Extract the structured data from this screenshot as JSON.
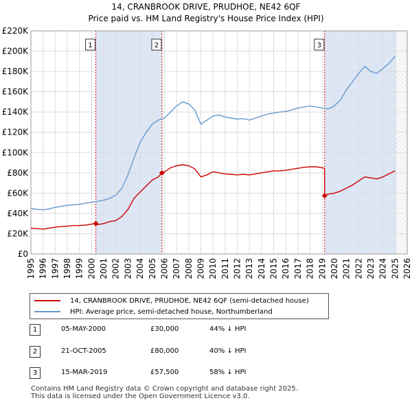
{
  "header": {
    "title": "14, CRANBROOK DRIVE, PRUDHOE, NE42 6QF",
    "subtitle": "Price paid vs. HM Land Registry's House Price Index (HPI)"
  },
  "legend": {
    "property_label": "14, CRANBROOK DRIVE, PRUDHOE, NE42 6QF (semi-detached house)",
    "hpi_label": "HPI: Average price, semi-detached house, Northumberland"
  },
  "sales": [
    {
      "num": "1",
      "date": "05-MAY-2000",
      "price": "£30,000",
      "hpi": "44% ↓ HPI"
    },
    {
      "num": "2",
      "date": "21-OCT-2005",
      "price": "£80,000",
      "hpi": "40% ↓ HPI"
    },
    {
      "num": "3",
      "date": "15-MAR-2019",
      "price": "£57,500",
      "hpi": "58% ↓ HPI"
    }
  ],
  "footer": {
    "line1": "Contains HM Land Registry data © Crown copyright and database right 2025.",
    "line2": "This data is licensed under the Open Government Licence v3.0."
  },
  "colors": {
    "property": "#cc0000",
    "hpi": "#6699cc",
    "shade": "#dde6f5",
    "grid": "#dddddd"
  },
  "chart_data": {
    "type": "line",
    "title": "14, CRANBROOK DRIVE, PRUDHOE, NE42 6QF",
    "subtitle": "Price paid vs. HM Land Registry's House Price Index (HPI)",
    "xlabel": "",
    "ylabel": "",
    "xlim": [
      1995,
      2026
    ],
    "ylim": [
      0,
      220000
    ],
    "y_ticks": [
      0,
      20000,
      40000,
      60000,
      80000,
      100000,
      120000,
      140000,
      160000,
      180000,
      200000,
      220000
    ],
    "y_tick_labels": [
      "£0",
      "£20K",
      "£40K",
      "£60K",
      "£80K",
      "£100K",
      "£120K",
      "£140K",
      "£160K",
      "£180K",
      "£200K",
      "£220K"
    ],
    "x_ticks": [
      1995,
      1996,
      1997,
      1998,
      1999,
      2000,
      2001,
      2002,
      2003,
      2004,
      2005,
      2006,
      2007,
      2008,
      2009,
      2010,
      2011,
      2012,
      2013,
      2014,
      2015,
      2016,
      2017,
      2018,
      2019,
      2020,
      2021,
      2022,
      2023,
      2024,
      2025,
      2026
    ],
    "x_tick_labels": [
      "1995",
      "1996",
      "1997",
      "1998",
      "1999",
      "2000",
      "2001",
      "2002",
      "2003",
      "2004",
      "2005",
      "2006",
      "2007",
      "2008",
      "2009",
      "2010",
      "2011",
      "2012",
      "2013",
      "2014",
      "2015",
      "2016",
      "2017",
      "2018",
      "2019",
      "2020",
      "2021",
      "2022",
      "2023",
      "2024",
      "2025",
      "2026"
    ],
    "grid": true,
    "shaded_ranges": [
      [
        2000.35,
        2005.8
      ],
      [
        2019.2,
        2025.1
      ]
    ],
    "hatch_from": 2025.1,
    "series": [
      {
        "name": "HPI: Average price, semi-detached house, Northumberland",
        "x": [
          1995.0,
          1995.5,
          1996.0,
          1996.5,
          1997.0,
          1997.5,
          1998.0,
          1998.5,
          1999.0,
          1999.5,
          2000.0,
          2000.5,
          2001.0,
          2001.5,
          2002.0,
          2002.5,
          2003.0,
          2003.5,
          2004.0,
          2004.5,
          2005.0,
          2005.5,
          2006.0,
          2006.5,
          2007.0,
          2007.5,
          2008.0,
          2008.5,
          2009.0,
          2009.5,
          2010.0,
          2010.5,
          2011.0,
          2011.5,
          2012.0,
          2012.5,
          2013.0,
          2013.5,
          2014.0,
          2014.5,
          2015.0,
          2015.5,
          2016.0,
          2016.5,
          2017.0,
          2017.5,
          2018.0,
          2018.5,
          2019.0,
          2019.5,
          2020.0,
          2020.5,
          2021.0,
          2021.5,
          2022.0,
          2022.5,
          2023.0,
          2023.5,
          2024.0,
          2024.5,
          2025.0
        ],
        "values": [
          45000,
          44000,
          43500,
          44500,
          46000,
          47000,
          48000,
          48500,
          49000,
          50000,
          51000,
          52000,
          53000,
          55000,
          58000,
          65000,
          78000,
          95000,
          110000,
          120000,
          128000,
          132000,
          134000,
          140000,
          146000,
          150000,
          148000,
          142000,
          128000,
          132000,
          136000,
          137000,
          135000,
          134000,
          133000,
          133500,
          132000,
          134000,
          136000,
          138000,
          139000,
          140000,
          140500,
          142000,
          144000,
          145000,
          146000,
          145000,
          144000,
          143000,
          146000,
          152000,
          162000,
          170000,
          178000,
          185000,
          180000,
          178000,
          183000,
          188000,
          195000
        ]
      },
      {
        "name": "14, CRANBROOK DRIVE, PRUDHOE, NE42 6QF (semi-detached house)",
        "x": [
          1995.0,
          1995.5,
          1996.0,
          1996.5,
          1997.0,
          1997.5,
          1998.0,
          1998.5,
          1999.0,
          1999.5,
          2000.0,
          2000.35,
          2000.5,
          2001.0,
          2001.5,
          2002.0,
          2002.5,
          2003.0,
          2003.5,
          2004.0,
          2004.5,
          2005.0,
          2005.5,
          2005.8,
          2006.0,
          2006.5,
          2007.0,
          2007.5,
          2008.0,
          2008.5,
          2009.0,
          2009.5,
          2010.0,
          2010.5,
          2011.0,
          2011.5,
          2012.0,
          2012.5,
          2013.0,
          2013.5,
          2014.0,
          2014.5,
          2015.0,
          2015.5,
          2016.0,
          2016.5,
          2017.0,
          2017.5,
          2018.0,
          2018.5,
          2019.0,
          2019.19,
          2019.2,
          2019.5,
          2020.0,
          2020.5,
          2021.0,
          2021.5,
          2022.0,
          2022.5,
          2023.0,
          2023.5,
          2024.0,
          2024.5,
          2025.0
        ],
        "values": [
          25500,
          25000,
          24500,
          25500,
          26500,
          27000,
          27500,
          28000,
          28000,
          28500,
          29500,
          30000,
          29000,
          30000,
          32000,
          33000,
          37000,
          44000,
          55000,
          61000,
          67000,
          73000,
          76000,
          80000,
          81000,
          85000,
          87000,
          88000,
          87000,
          84000,
          76000,
          78000,
          81000,
          80000,
          79000,
          78500,
          78000,
          78500,
          78000,
          79000,
          80000,
          81000,
          82000,
          82000,
          82500,
          83500,
          84500,
          85500,
          86000,
          86000,
          85000,
          84500,
          57500,
          59000,
          60000,
          62000,
          65000,
          68000,
          72000,
          76000,
          75000,
          74000,
          76000,
          79000,
          82000
        ]
      }
    ],
    "sales": [
      {
        "label": "1",
        "x": 2000.35,
        "value": 30000
      },
      {
        "label": "2",
        "x": 2005.8,
        "value": 80000
      },
      {
        "label": "3",
        "x": 2019.2,
        "value": 57500
      }
    ]
  }
}
